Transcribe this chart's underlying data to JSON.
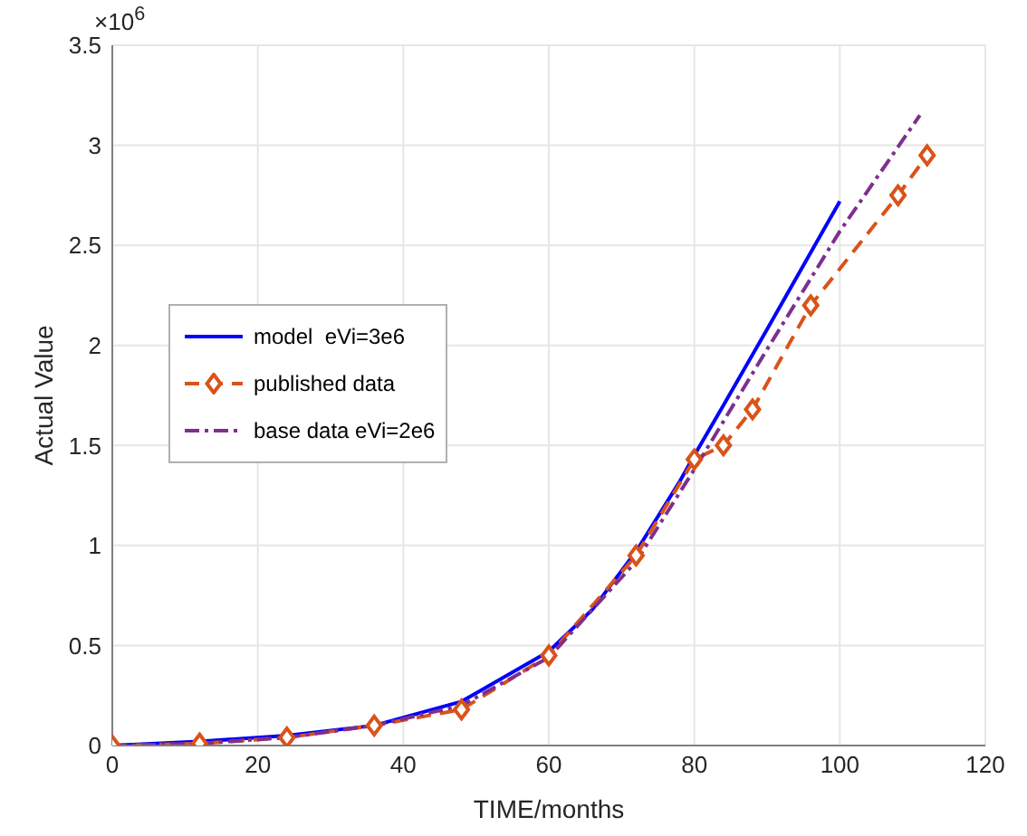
{
  "chart_data": {
    "type": "line",
    "xlabel": "TIME/months",
    "ylabel": "Actual Value",
    "annotations": [
      "×10$^{6}$"
    ],
    "xlim": [
      0,
      120
    ],
    "xticks": [
      0,
      20,
      40,
      60,
      80,
      100,
      120
    ],
    "ylim": [
      0,
      3.5
    ],
    "yticks": [
      0,
      0.5,
      1,
      1.5,
      2,
      2.5,
      3,
      3.5
    ],
    "grid": true,
    "legend": "left",
    "series": [
      {
        "name": "model  eVi=3e6",
        "color": "#0000ff",
        "marker": "none",
        "line_style": "solid",
        "x": [
          0,
          12,
          24,
          36,
          48,
          60,
          66,
          72,
          78,
          80,
          84,
          90,
          100
        ],
        "values": [
          0,
          0.02,
          0.05,
          0.1,
          0.22,
          0.47,
          0.68,
          0.97,
          1.32,
          1.45,
          1.7,
          2.08,
          2.72
        ]
      },
      {
        "name": "published data",
        "color": "#d95319",
        "marker": "diamond",
        "line_style": "dashed",
        "x": [
          0,
          12,
          24,
          36,
          48,
          60,
          72,
          80,
          84,
          88,
          96,
          108,
          112
        ],
        "values": [
          0,
          0.01,
          0.04,
          0.1,
          0.18,
          0.45,
          0.95,
          1.43,
          1.5,
          1.68,
          2.2,
          2.75,
          2.95
        ]
      },
      {
        "name": "base data eVi=2e6",
        "color": "#7e2f8e",
        "marker": "none",
        "line_style": "dashdot",
        "x": [
          0,
          12,
          24,
          36,
          48,
          60,
          72,
          80,
          90,
          100,
          111
        ],
        "values": [
          0,
          0.01,
          0.04,
          0.1,
          0.2,
          0.44,
          0.92,
          1.38,
          1.98,
          2.57,
          3.15
        ]
      }
    ]
  }
}
